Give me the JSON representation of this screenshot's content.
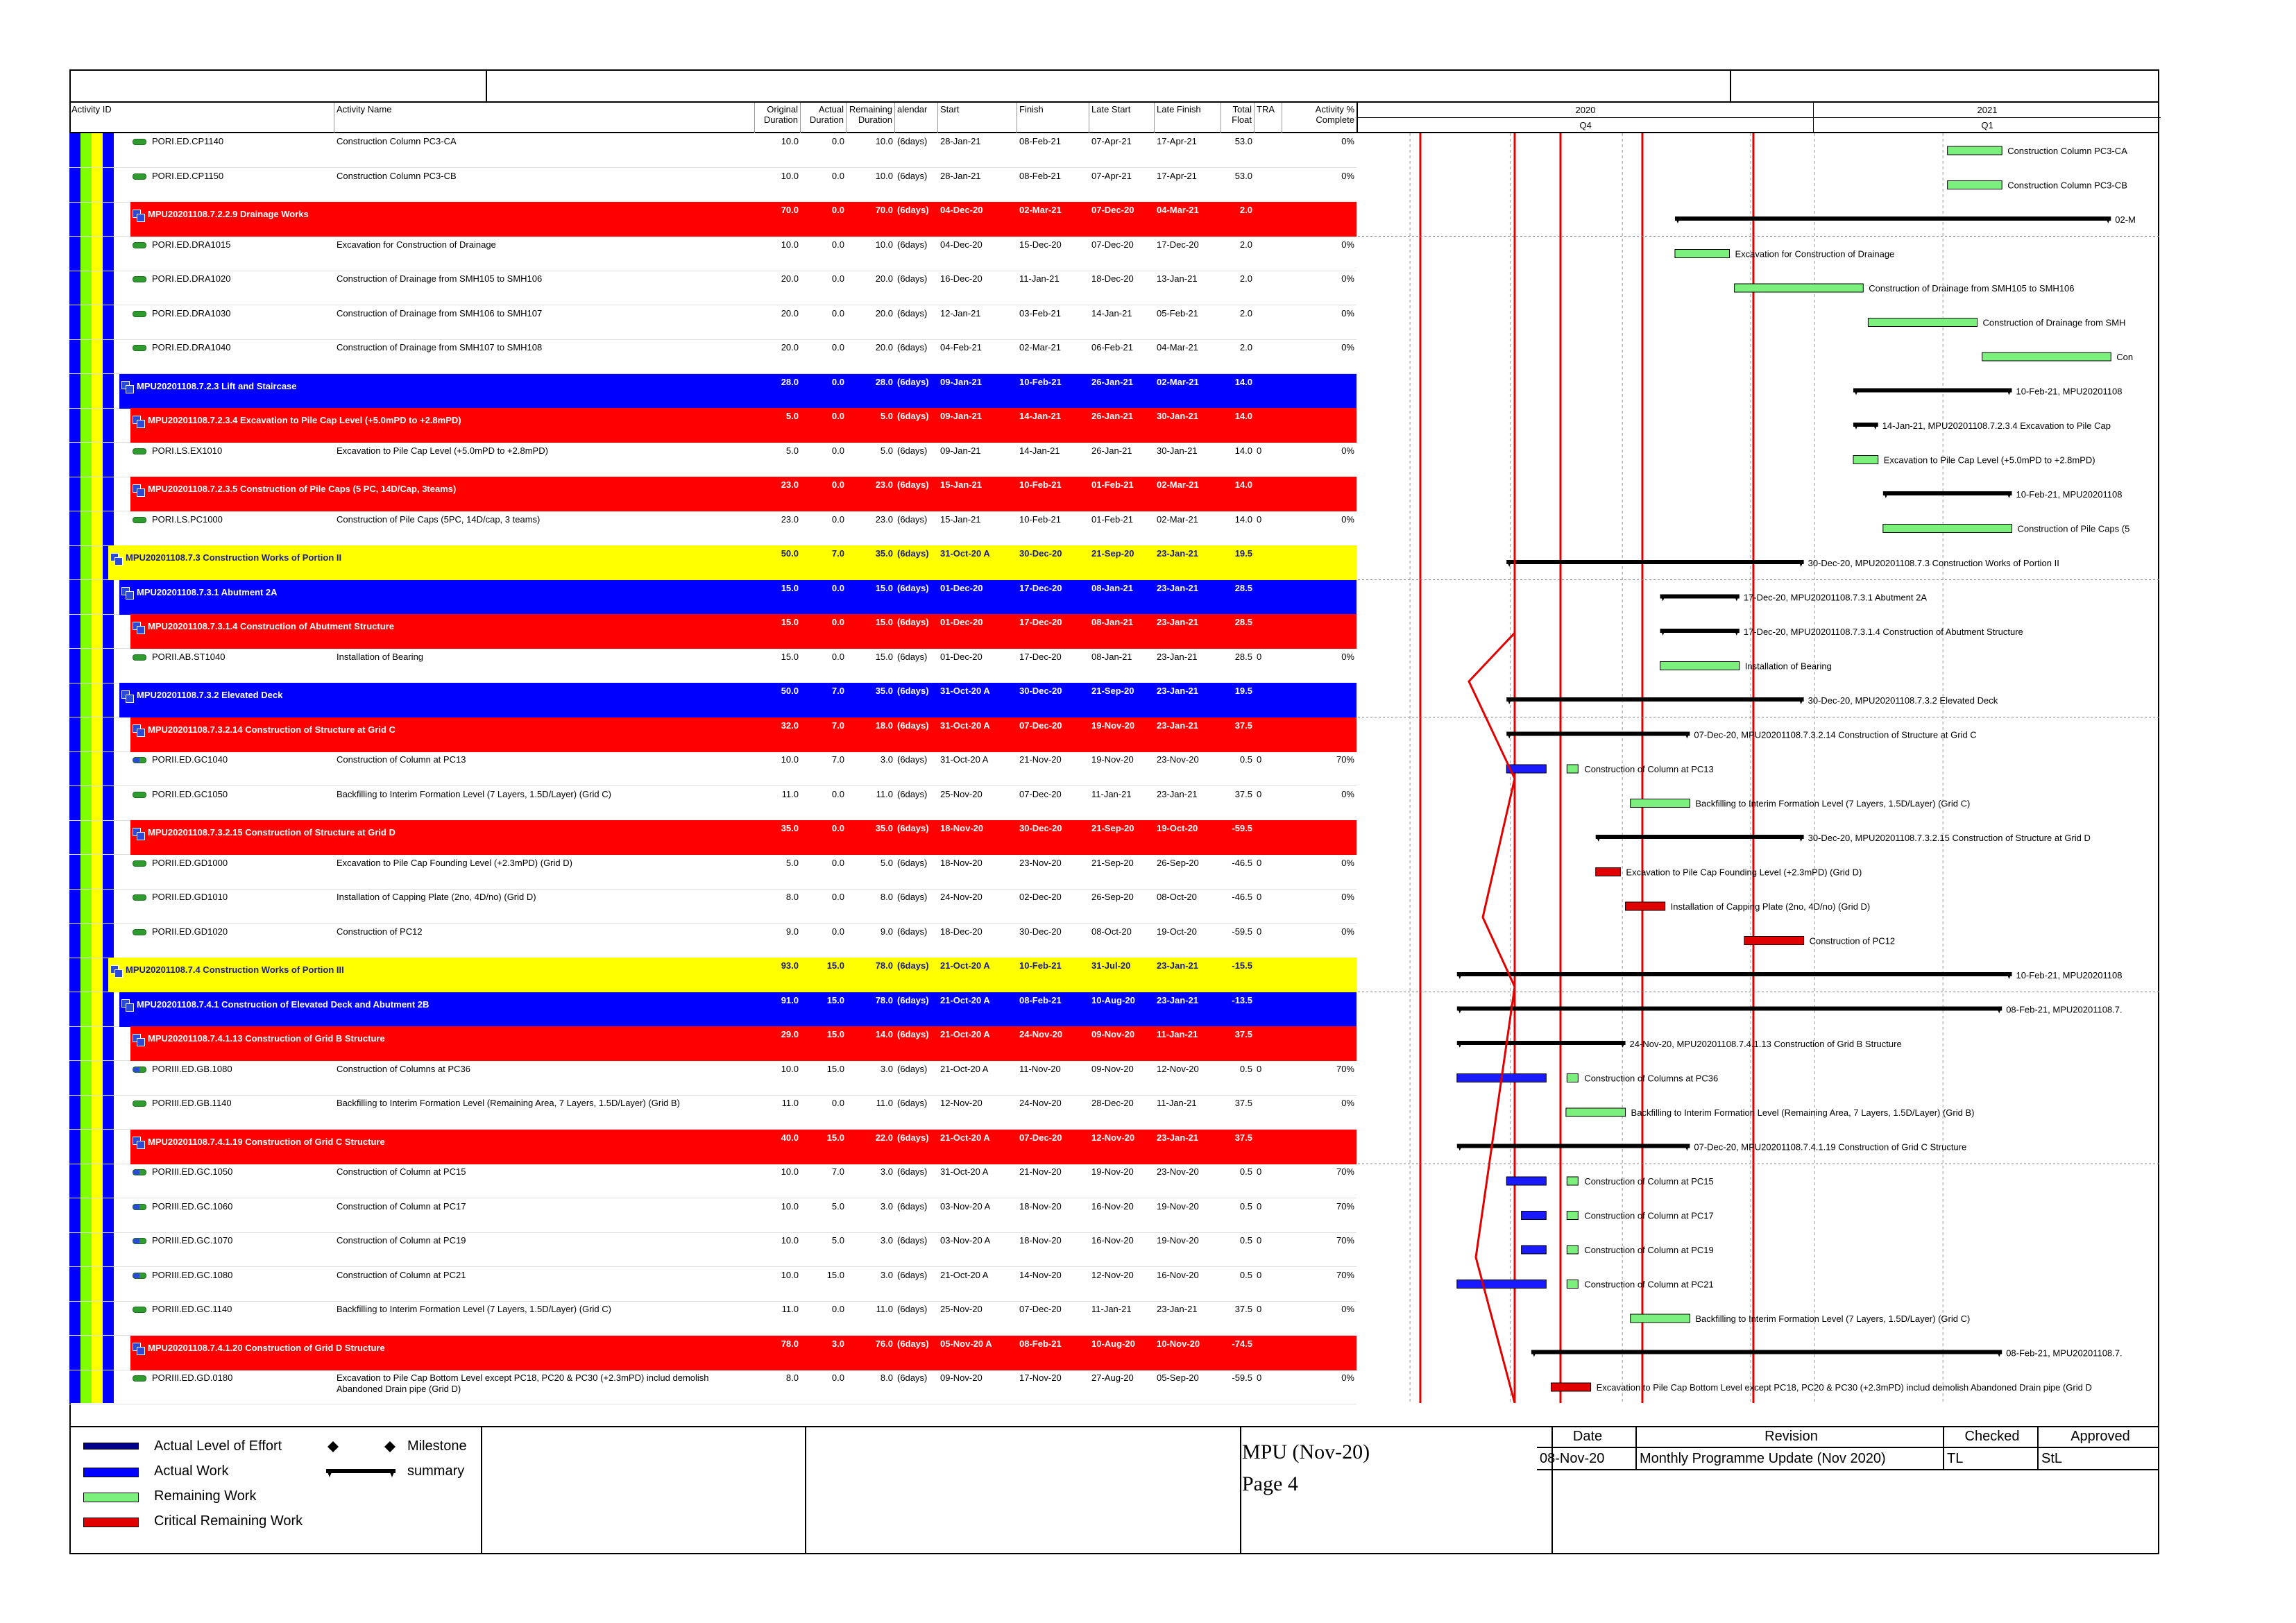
{
  "header": {
    "activity_id": "Activity ID",
    "activity_name": "Activity Name",
    "original_duration": "Original Duration",
    "actual_duration": "Actual Duration",
    "remaining_duration": "Remaining Duration",
    "calendar": "alendar",
    "start": "Start",
    "finish": "Finish",
    "late_start": "Late Start",
    "late_finish": "Late Finish",
    "total_float": "Total Float",
    "tra": "TRA",
    "activity_pct": "Activity % Complete"
  },
  "timeline": {
    "year1": "2020",
    "year2": "2021",
    "q1": "Q4",
    "q2": "Q1"
  },
  "rows": [
    {
      "type": "task",
      "id": "PORI.ED.CP1140",
      "name": "Construction Column PC3-CA",
      "od": "10.0",
      "ad": "0.0",
      "rd": "10.0",
      "cal": "(6days)",
      "start": "28-Jan-21",
      "finish": "08-Feb-21",
      "ls": "07-Apr-21",
      "lf": "17-Apr-21",
      "tf": "53.0",
      "tra": "",
      "pct": "0%",
      "bar_label": "Construction Column PC3-CA"
    },
    {
      "type": "task",
      "id": "PORI.ED.CP1150",
      "name": "Construction Column PC3-CB",
      "od": "10.0",
      "ad": "0.0",
      "rd": "10.0",
      "cal": "(6days)",
      "start": "28-Jan-21",
      "finish": "08-Feb-21",
      "ls": "07-Apr-21",
      "lf": "17-Apr-21",
      "tf": "53.0",
      "tra": "",
      "pct": "0%",
      "bar_label": "Construction Column PC3-CB"
    },
    {
      "type": "wbs",
      "color": "red",
      "id": "MPU20201108.7.2.2.9  Drainage Works",
      "od": "70.0",
      "ad": "0.0",
      "rd": "70.0",
      "cal": "(6days)",
      "start": "04-Dec-20",
      "finish": "02-Mar-21",
      "ls": "07-Dec-20",
      "lf": "04-Mar-21",
      "tf": "2.0",
      "bar_label": "02-M"
    },
    {
      "type": "task",
      "id": "PORI.ED.DRA1015",
      "name": "Excavation for Construction of Drainage",
      "od": "10.0",
      "ad": "0.0",
      "rd": "10.0",
      "cal": "(6days)",
      "start": "04-Dec-20",
      "finish": "15-Dec-20",
      "ls": "07-Dec-20",
      "lf": "17-Dec-20",
      "tf": "2.0",
      "tra": "",
      "pct": "0%",
      "bar_label": "Excavation for Construction of Drainage"
    },
    {
      "type": "task",
      "id": "PORI.ED.DRA1020",
      "name": "Construction of Drainage from SMH105 to SMH106",
      "od": "20.0",
      "ad": "0.0",
      "rd": "20.0",
      "cal": "(6days)",
      "start": "16-Dec-20",
      "finish": "11-Jan-21",
      "ls": "18-Dec-20",
      "lf": "13-Jan-21",
      "tf": "2.0",
      "tra": "",
      "pct": "0%",
      "bar_label": "Construction of Drainage from SMH105 to SMH106"
    },
    {
      "type": "task",
      "id": "PORI.ED.DRA1030",
      "name": "Construction of Drainage from SMH106 to SMH107",
      "od": "20.0",
      "ad": "0.0",
      "rd": "20.0",
      "cal": "(6days)",
      "start": "12-Jan-21",
      "finish": "03-Feb-21",
      "ls": "14-Jan-21",
      "lf": "05-Feb-21",
      "tf": "2.0",
      "tra": "",
      "pct": "0%",
      "bar_label": "Construction of Drainage from SMH"
    },
    {
      "type": "task",
      "id": "PORI.ED.DRA1040",
      "name": "Construction of Drainage from SMH107 to SMH108",
      "od": "20.0",
      "ad": "0.0",
      "rd": "20.0",
      "cal": "(6days)",
      "start": "04-Feb-21",
      "finish": "02-Mar-21",
      "ls": "06-Feb-21",
      "lf": "04-Mar-21",
      "tf": "2.0",
      "tra": "",
      "pct": "0%",
      "bar_label": "Con"
    },
    {
      "type": "wbs",
      "color": "blue",
      "id": "MPU20201108.7.2.3  Lift and Staircase",
      "od": "28.0",
      "ad": "0.0",
      "rd": "28.0",
      "cal": "(6days)",
      "start": "09-Jan-21",
      "finish": "10-Feb-21",
      "ls": "26-Jan-21",
      "lf": "02-Mar-21",
      "tf": "14.0",
      "bar_label": "10-Feb-21, MPU20201108"
    },
    {
      "type": "wbs",
      "color": "red",
      "id": "MPU20201108.7.2.3.4  Excavation to Pile Cap Level (+5.0mPD to +2.8mPD)",
      "od": "5.0",
      "ad": "0.0",
      "rd": "5.0",
      "cal": "(6days)",
      "start": "09-Jan-21",
      "finish": "14-Jan-21",
      "ls": "26-Jan-21",
      "lf": "30-Jan-21",
      "tf": "14.0",
      "bar_label": "14-Jan-21, MPU20201108.7.2.3.4  Excavation to Pile Cap"
    },
    {
      "type": "task",
      "id": "PORI.LS.EX1010",
      "name": "Excavation to Pile Cap Level (+5.0mPD to +2.8mPD)",
      "od": "5.0",
      "ad": "0.0",
      "rd": "5.0",
      "cal": "(6days)",
      "start": "09-Jan-21",
      "finish": "14-Jan-21",
      "ls": "26-Jan-21",
      "lf": "30-Jan-21",
      "tf": "14.0",
      "tra": "0",
      "pct": "0%",
      "bar_label": "Excavation to Pile Cap Level (+5.0mPD to +2.8mPD)"
    },
    {
      "type": "wbs",
      "color": "red",
      "id": "MPU20201108.7.2.3.5  Construction of Pile Caps (5 PC, 14D/Cap, 3teams)",
      "od": "23.0",
      "ad": "0.0",
      "rd": "23.0",
      "cal": "(6days)",
      "start": "15-Jan-21",
      "finish": "10-Feb-21",
      "ls": "01-Feb-21",
      "lf": "02-Mar-21",
      "tf": "14.0",
      "bar_label": "10-Feb-21, MPU20201108"
    },
    {
      "type": "task",
      "id": "PORI.LS.PC1000",
      "name": "Construction of Pile Caps (5PC, 14D/cap, 3 teams)",
      "od": "23.0",
      "ad": "0.0",
      "rd": "23.0",
      "cal": "(6days)",
      "start": "15-Jan-21",
      "finish": "10-Feb-21",
      "ls": "01-Feb-21",
      "lf": "02-Mar-21",
      "tf": "14.0",
      "tra": "0",
      "pct": "0%",
      "bar_label": "Construction of Pile Caps (5"
    },
    {
      "type": "wbs",
      "color": "yellow",
      "id": "MPU20201108.7.3  Construction Works of Portion II",
      "od": "50.0",
      "ad": "7.0",
      "rd": "35.0",
      "cal": "(6days)",
      "start": "31-Oct-20 A",
      "finish": "30-Dec-20",
      "ls": "21-Sep-20",
      "lf": "23-Jan-21",
      "tf": "19.5",
      "bar_label": "30-Dec-20, MPU20201108.7.3  Construction Works of Portion II"
    },
    {
      "type": "wbs",
      "color": "blue",
      "id": "MPU20201108.7.3.1  Abutment 2A",
      "od": "15.0",
      "ad": "0.0",
      "rd": "15.0",
      "cal": "(6days)",
      "start": "01-Dec-20",
      "finish": "17-Dec-20",
      "ls": "08-Jan-21",
      "lf": "23-Jan-21",
      "tf": "28.5",
      "bar_label": "17-Dec-20, MPU20201108.7.3.1  Abutment 2A"
    },
    {
      "type": "wbs",
      "color": "red",
      "id": "MPU20201108.7.3.1.4  Construction of Abutment Structure",
      "od": "15.0",
      "ad": "0.0",
      "rd": "15.0",
      "cal": "(6days)",
      "start": "01-Dec-20",
      "finish": "17-Dec-20",
      "ls": "08-Jan-21",
      "lf": "23-Jan-21",
      "tf": "28.5",
      "bar_label": "17-Dec-20, MPU20201108.7.3.1.4  Construction of Abutment Structure"
    },
    {
      "type": "task",
      "id": "PORII.AB.ST1040",
      "name": "Installation of Bearing",
      "od": "15.0",
      "ad": "0.0",
      "rd": "15.0",
      "cal": "(6days)",
      "start": "01-Dec-20",
      "finish": "17-Dec-20",
      "ls": "08-Jan-21",
      "lf": "23-Jan-21",
      "tf": "28.5",
      "tra": "0",
      "pct": "0%",
      "bar_label": "Installation of Bearing"
    },
    {
      "type": "wbs",
      "color": "blue",
      "id": "MPU20201108.7.3.2  Elevated Deck",
      "od": "50.0",
      "ad": "7.0",
      "rd": "35.0",
      "cal": "(6days)",
      "start": "31-Oct-20 A",
      "finish": "30-Dec-20",
      "ls": "21-Sep-20",
      "lf": "23-Jan-21",
      "tf": "19.5",
      "bar_label": "30-Dec-20, MPU20201108.7.3.2  Elevated Deck"
    },
    {
      "type": "wbs",
      "color": "red",
      "id": "MPU20201108.7.3.2.14  Construction of Structure at Grid C",
      "od": "32.0",
      "ad": "7.0",
      "rd": "18.0",
      "cal": "(6days)",
      "start": "31-Oct-20 A",
      "finish": "07-Dec-20",
      "ls": "19-Nov-20",
      "lf": "23-Jan-21",
      "tf": "37.5",
      "bar_label": "07-Dec-20, MPU20201108.7.3.2.14  Construction of Structure at Grid C"
    },
    {
      "type": "task",
      "prog": true,
      "id": "PORII.ED.GC1040",
      "name": "Construction of Column at PC13",
      "od": "10.0",
      "ad": "7.0",
      "rd": "3.0",
      "cal": "(6days)",
      "start": "31-Oct-20 A",
      "finish": "21-Nov-20",
      "ls": "19-Nov-20",
      "lf": "23-Nov-20",
      "tf": "0.5",
      "tra": "0",
      "pct": "70%",
      "bar_label": "Construction of Column at PC13"
    },
    {
      "type": "task",
      "id": "PORII.ED.GC1050",
      "name": "Backfilling to Interim Formation Level (7 Layers, 1.5D/Layer) (Grid C)",
      "od": "11.0",
      "ad": "0.0",
      "rd": "11.0",
      "cal": "(6days)",
      "start": "25-Nov-20",
      "finish": "07-Dec-20",
      "ls": "11-Jan-21",
      "lf": "23-Jan-21",
      "tf": "37.5",
      "tra": "0",
      "pct": "0%",
      "bar_label": "Backfilling to Interim Formation Level (7 Layers, 1.5D/Layer) (Grid C)"
    },
    {
      "type": "wbs",
      "color": "red",
      "id": "MPU20201108.7.3.2.15  Construction of Structure at Grid D",
      "od": "35.0",
      "ad": "0.0",
      "rd": "35.0",
      "cal": "(6days)",
      "start": "18-Nov-20",
      "finish": "30-Dec-20",
      "ls": "21-Sep-20",
      "lf": "19-Oct-20",
      "tf": "-59.5",
      "bar_label": "30-Dec-20, MPU20201108.7.3.2.15  Construction of Structure at Grid D"
    },
    {
      "type": "task",
      "id": "PORII.ED.GD1000",
      "name": "Excavation to Pile Cap Founding Level (+2.3mPD) (Grid D)",
      "od": "5.0",
      "ad": "0.0",
      "rd": "5.0",
      "cal": "(6days)",
      "start": "18-Nov-20",
      "finish": "23-Nov-20",
      "ls": "21-Sep-20",
      "lf": "26-Sep-20",
      "tf": "-46.5",
      "tra": "0",
      "pct": "0%",
      "bar_label": "Excavation to Pile Cap Founding Level (+2.3mPD) (Grid D)"
    },
    {
      "type": "task",
      "id": "PORII.ED.GD1010",
      "name": "Installation of Capping Plate (2no, 4D/no) (Grid D)",
      "od": "8.0",
      "ad": "0.0",
      "rd": "8.0",
      "cal": "(6days)",
      "start": "24-Nov-20",
      "finish": "02-Dec-20",
      "ls": "26-Sep-20",
      "lf": "08-Oct-20",
      "tf": "-46.5",
      "tra": "0",
      "pct": "0%",
      "bar_label": "Installation of Capping Plate (2no, 4D/no) (Grid D)"
    },
    {
      "type": "task",
      "id": "PORII.ED.GD1020",
      "name": "Construction of PC12",
      "od": "9.0",
      "ad": "0.0",
      "rd": "9.0",
      "cal": "(6days)",
      "start": "18-Dec-20",
      "finish": "30-Dec-20",
      "ls": "08-Oct-20",
      "lf": "19-Oct-20",
      "tf": "-59.5",
      "tra": "0",
      "pct": "0%",
      "bar_label": "Construction of PC12"
    },
    {
      "type": "wbs",
      "color": "yellow",
      "id": "MPU20201108.7.4  Construction Works of Portion III",
      "od": "93.0",
      "ad": "15.0",
      "rd": "78.0",
      "cal": "(6days)",
      "start": "21-Oct-20 A",
      "finish": "10-Feb-21",
      "ls": "31-Jul-20",
      "lf": "23-Jan-21",
      "tf": "-15.5",
      "bar_label": "10-Feb-21, MPU20201108"
    },
    {
      "type": "wbs",
      "color": "blue",
      "id": "MPU20201108.7.4.1  Construction of Elevated Deck and Abutment 2B",
      "od": "91.0",
      "ad": "15.0",
      "rd": "78.0",
      "cal": "(6days)",
      "start": "21-Oct-20 A",
      "finish": "08-Feb-21",
      "ls": "10-Aug-20",
      "lf": "23-Jan-21",
      "tf": "-13.5",
      "bar_label": "08-Feb-21, MPU20201108.7."
    },
    {
      "type": "wbs",
      "color": "red",
      "id": "MPU20201108.7.4.1.13  Construction of Grid B Structure",
      "od": "29.0",
      "ad": "15.0",
      "rd": "14.0",
      "cal": "(6days)",
      "start": "21-Oct-20 A",
      "finish": "24-Nov-20",
      "ls": "09-Nov-20",
      "lf": "11-Jan-21",
      "tf": "37.5",
      "bar_label": "24-Nov-20, MPU20201108.7.4.1.13  Construction of Grid B Structure"
    },
    {
      "type": "task",
      "prog": true,
      "id": "PORIII.ED.GB.1080",
      "name": "Construction of Columns at PC36",
      "od": "10.0",
      "ad": "15.0",
      "rd": "3.0",
      "cal": "(6days)",
      "start": "21-Oct-20 A",
      "finish": "11-Nov-20",
      "ls": "09-Nov-20",
      "lf": "12-Nov-20",
      "tf": "0.5",
      "tra": "0",
      "pct": "70%",
      "bar_label": "Construction of Columns at PC36"
    },
    {
      "type": "task",
      "id": "PORIII.ED.GB.1140",
      "name": "Backfilling to Interim Formation Level (Remaining Area, 7 Layers, 1.5D/Layer) (Grid B)",
      "od": "11.0",
      "ad": "0.0",
      "rd": "11.0",
      "cal": "(6days)",
      "start": "12-Nov-20",
      "finish": "24-Nov-20",
      "ls": "28-Dec-20",
      "lf": "11-Jan-21",
      "tf": "37.5",
      "tra": "",
      "pct": "0%",
      "bar_label": "Backfilling to Interim Formation Level (Remaining Area, 7 Layers, 1.5D/Layer) (Grid B)"
    },
    {
      "type": "wbs",
      "color": "red",
      "id": "MPU20201108.7.4.1.19  Construction of Grid C Structure",
      "od": "40.0",
      "ad": "15.0",
      "rd": "22.0",
      "cal": "(6days)",
      "start": "21-Oct-20 A",
      "finish": "07-Dec-20",
      "ls": "12-Nov-20",
      "lf": "23-Jan-21",
      "tf": "37.5",
      "bar_label": "07-Dec-20, MPU20201108.7.4.1.19  Construction of Grid C Structure"
    },
    {
      "type": "task",
      "prog": true,
      "id": "PORIII.ED.GC.1050",
      "name": "Construction of Column at PC15",
      "od": "10.0",
      "ad": "7.0",
      "rd": "3.0",
      "cal": "(6days)",
      "start": "31-Oct-20 A",
      "finish": "21-Nov-20",
      "ls": "19-Nov-20",
      "lf": "23-Nov-20",
      "tf": "0.5",
      "tra": "0",
      "pct": "70%",
      "bar_label": "Construction of Column at PC15"
    },
    {
      "type": "task",
      "prog": true,
      "id": "PORIII.ED.GC.1060",
      "name": "Construction of Column at PC17",
      "od": "10.0",
      "ad": "5.0",
      "rd": "3.0",
      "cal": "(6days)",
      "start": "03-Nov-20 A",
      "finish": "18-Nov-20",
      "ls": "16-Nov-20",
      "lf": "19-Nov-20",
      "tf": "0.5",
      "tra": "0",
      "pct": "70%",
      "bar_label": "Construction of Column at PC17"
    },
    {
      "type": "task",
      "prog": true,
      "id": "PORIII.ED.GC.1070",
      "name": "Construction of Column at PC19",
      "od": "10.0",
      "ad": "5.0",
      "rd": "3.0",
      "cal": "(6days)",
      "start": "03-Nov-20 A",
      "finish": "18-Nov-20",
      "ls": "16-Nov-20",
      "lf": "19-Nov-20",
      "tf": "0.5",
      "tra": "0",
      "pct": "70%",
      "bar_label": "Construction of Column at PC19"
    },
    {
      "type": "task",
      "prog": true,
      "id": "PORIII.ED.GC.1080",
      "name": "Construction of Column at PC21",
      "od": "10.0",
      "ad": "15.0",
      "rd": "3.0",
      "cal": "(6days)",
      "start": "21-Oct-20 A",
      "finish": "14-Nov-20",
      "ls": "12-Nov-20",
      "lf": "16-Nov-20",
      "tf": "0.5",
      "tra": "0",
      "pct": "70%",
      "bar_label": "Construction of Column at PC21"
    },
    {
      "type": "task",
      "id": "PORIII.ED.GC.1140",
      "name": "Backfilling to Interim Formation Level (7 Layers, 1.5D/Layer) (Grid C)",
      "od": "11.0",
      "ad": "0.0",
      "rd": "11.0",
      "cal": "(6days)",
      "start": "25-Nov-20",
      "finish": "07-Dec-20",
      "ls": "11-Jan-21",
      "lf": "23-Jan-21",
      "tf": "37.5",
      "tra": "0",
      "pct": "0%",
      "bar_label": "Backfilling to Interim Formation Level (7 Layers, 1.5D/Layer) (Grid C)"
    },
    {
      "type": "wbs",
      "color": "red",
      "id": "MPU20201108.7.4.1.20  Construction of Grid D Structure",
      "od": "78.0",
      "ad": "3.0",
      "rd": "76.0",
      "cal": "(6days)",
      "start": "05-Nov-20 A",
      "finish": "08-Feb-21",
      "ls": "10-Aug-20",
      "lf": "10-Nov-20",
      "tf": "-74.5",
      "bar_label": "08-Feb-21, MPU20201108.7."
    },
    {
      "type": "task",
      "id": "PORIII.ED.GD.0180",
      "name": "Excavation to Pile Cap Bottom Level except PC18, PC20 & PC30 (+2.3mPD) includ demolish Abandoned Drain pipe (Grid D)",
      "od": "8.0",
      "ad": "0.0",
      "rd": "8.0",
      "cal": "(6days)",
      "start": "09-Nov-20",
      "finish": "17-Nov-20",
      "ls": "27-Aug-20",
      "lf": "05-Sep-20",
      "tf": "-59.5",
      "tra": "0",
      "pct": "0%",
      "bar_label": "Excavation to Pile Cap Bottom Level except PC18, PC20 & PC30 (+2.3mPD) includ demolish Abandoned Drain pipe (Grid D"
    }
  ],
  "legend": {
    "actual_level_of_effort": "Actual Level of Effort",
    "actual_work": "Actual Work",
    "remaining_work": "Remaining Work",
    "critical_remaining_work": "Critical Remaining Work",
    "milestone": "Milestone",
    "summary": "summary"
  },
  "title_block": {
    "project": "MPU (Nov-20)",
    "page": "Page 4"
  },
  "revision": {
    "date_label": "Date",
    "revision_label": "Revision",
    "checked_label": "Checked",
    "approved_label": "Approved",
    "date": "08-Nov-20",
    "revision": "Monthly Programme Update (Nov 2020)",
    "checked": "TL",
    "approved": "StL"
  },
  "colors": {
    "wbs_red": "#ff0000",
    "wbs_blue": "#0000ff",
    "wbs_yellow": "#ffff00",
    "actual": "#1a1aff",
    "remaining": "#7cf07c",
    "critical": "#e00000"
  }
}
